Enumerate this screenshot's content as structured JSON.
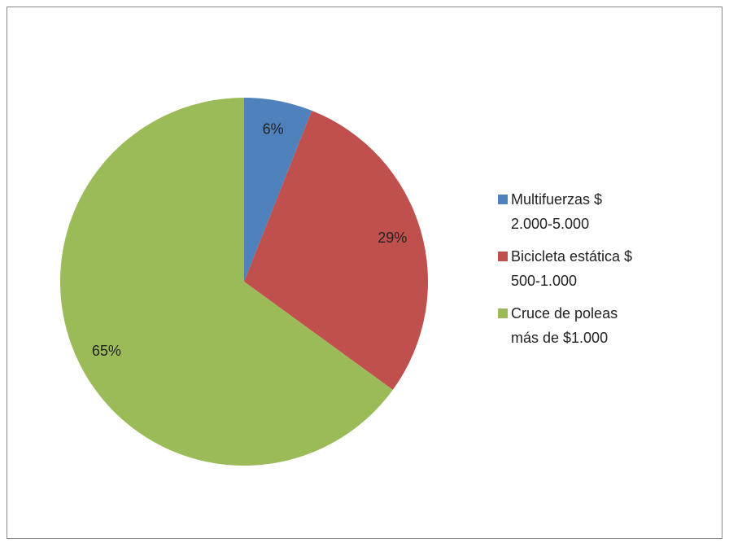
{
  "chart_data": {
    "type": "pie",
    "categories": [
      "Multifuerzas $ 2.000-5.000",
      "Bicicleta estática $ 500-1.000",
      "Cruce de poleas más de $1.000"
    ],
    "values": [
      6,
      29,
      65
    ],
    "value_labels": [
      "6%",
      "29%",
      "65%"
    ],
    "colors": [
      "#4f81bd",
      "#c0504d",
      "#9bbb59"
    ],
    "legend": "right"
  }
}
